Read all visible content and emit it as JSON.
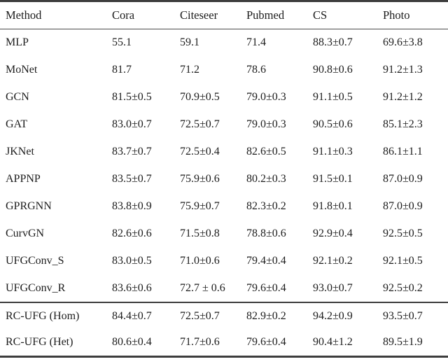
{
  "table": {
    "columns": [
      {
        "label": "Method"
      },
      {
        "label": "Cora"
      },
      {
        "label": "Citeseer"
      },
      {
        "label": "Pubmed"
      },
      {
        "label": "CS"
      },
      {
        "label": "Photo"
      }
    ],
    "rows": [
      {
        "cells": [
          "MLP",
          "55.1",
          "59.1",
          "71.4",
          "88.3±0.7",
          "69.6±3.8"
        ],
        "bold": []
      },
      {
        "cells": [
          "MoNet",
          "81.7",
          "71.2",
          "78.6",
          "90.8±0.6",
          "91.2±1.3"
        ],
        "bold": []
      },
      {
        "cells": [
          "GCN",
          "81.5±0.5",
          "70.9±0.5",
          "79.0±0.3",
          "91.1±0.5",
          "91.2±1.2"
        ],
        "bold": []
      },
      {
        "cells": [
          "GAT",
          "83.0±0.7",
          "72.5±0.7",
          "79.0±0.3",
          "90.5±0.6",
          "85.1±2.3"
        ],
        "bold": []
      },
      {
        "cells": [
          "JKNet",
          "83.7±0.7",
          "72.5±0.4",
          "82.6±0.5",
          "91.1±0.3",
          "86.1±1.1"
        ],
        "bold": []
      },
      {
        "cells": [
          "APPNP",
          "83.5±0.7",
          "75.9±0.6",
          "80.2±0.3",
          "91.5±0.1",
          "87.0±0.9"
        ],
        "bold": [
          2
        ]
      },
      {
        "cells": [
          "GPRGNN",
          "83.8±0.9",
          "75.9±0.7",
          "82.3±0.2",
          "91.8±0.1",
          "87.0±0.9"
        ],
        "bold": []
      },
      {
        "cells": [
          "CurvGN",
          "82.6±0.6",
          "71.5±0.8",
          "78.8±0.6",
          "92.9±0.4",
          "92.5±0.5"
        ],
        "bold": []
      },
      {
        "cells": [
          "UFGConv_S",
          "83.0±0.5",
          "71.0±0.6",
          "79.4±0.4",
          "92.1±0.2",
          "92.1±0.5"
        ],
        "bold": []
      },
      {
        "cells": [
          "UFGConv_R",
          "83.6±0.6",
          "72.7 ± 0.6",
          "79.6±0.4",
          "93.0±0.7",
          "92.5±0.2"
        ],
        "bold": []
      },
      {
        "cells": [
          "RC-UFG (Hom)",
          "84.4±0.7",
          "72.5±0.7",
          "82.9±0.2",
          "94.2±0.9",
          "93.5±0.7"
        ],
        "bold": [
          1,
          3,
          4,
          5
        ],
        "section_start": true
      },
      {
        "cells": [
          "RC-UFG (Het)",
          "80.6±0.4",
          "71.7±0.6",
          "79.6±0.4",
          "90.4±1.2",
          "89.5±1.9"
        ],
        "bold": []
      }
    ]
  }
}
